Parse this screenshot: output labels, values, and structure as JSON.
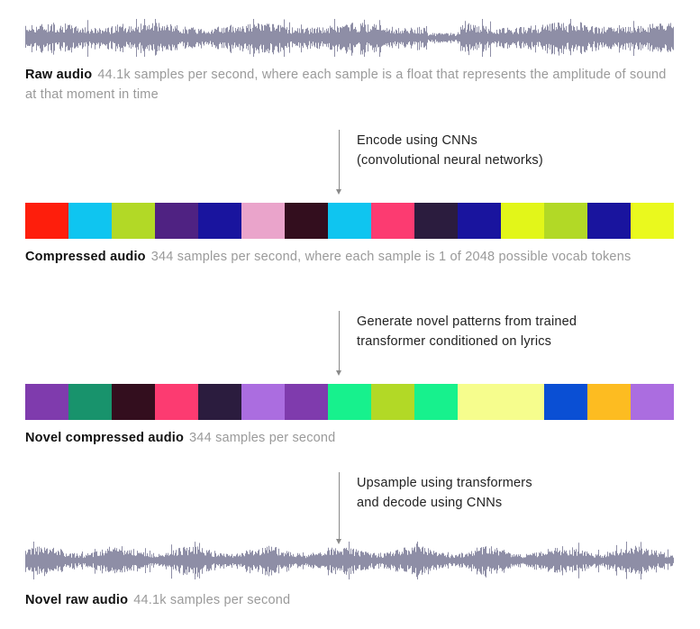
{
  "raw_audio": {
    "title": "Raw audio",
    "description": "44.1k samples per second, where each sample is a float that represents the amplitude of sound at that moment in time"
  },
  "step_encode": {
    "line1": "Encode using CNNs",
    "line2": "(convolutional neural networks)"
  },
  "compressed_audio": {
    "title": "Compressed audio",
    "description": "344 samples per second, where each sample is 1 of 2048 possible vocab tokens",
    "tokens": [
      {
        "color": "#fe1e0c",
        "span": 1
      },
      {
        "color": "#0fc5f0",
        "span": 1
      },
      {
        "color": "#b2d926",
        "span": 1
      },
      {
        "color": "#4f2282",
        "span": 1
      },
      {
        "color": "#19149e",
        "span": 1
      },
      {
        "color": "#eaa4cb",
        "span": 1
      },
      {
        "color": "#330e1e",
        "span": 1
      },
      {
        "color": "#0fc5f0",
        "span": 1
      },
      {
        "color": "#fc3b71",
        "span": 1
      },
      {
        "color": "#2b1c3e",
        "span": 1
      },
      {
        "color": "#19149e",
        "span": 1
      },
      {
        "color": "#e2f619",
        "span": 1
      },
      {
        "color": "#b2d926",
        "span": 1
      },
      {
        "color": "#19149e",
        "span": 1
      },
      {
        "color": "#eaf91e",
        "span": 1
      }
    ]
  },
  "step_generate": {
    "line1": "Generate novel patterns from trained",
    "line2": "transformer conditioned on lyrics"
  },
  "novel_compressed_audio": {
    "title": "Novel compressed audio",
    "description": "344 samples per second",
    "tokens": [
      {
        "color": "#7f3bad",
        "span": 1
      },
      {
        "color": "#18936c",
        "span": 1
      },
      {
        "color": "#330e1e",
        "span": 1
      },
      {
        "color": "#fc3b71",
        "span": 1
      },
      {
        "color": "#2b1c3e",
        "span": 1
      },
      {
        "color": "#ab6de0",
        "span": 1
      },
      {
        "color": "#7f3bad",
        "span": 1
      },
      {
        "color": "#17f18d",
        "span": 1
      },
      {
        "color": "#b2d926",
        "span": 1
      },
      {
        "color": "#17f18d",
        "span": 1
      },
      {
        "color": "#f6fd8d",
        "span": 2
      },
      {
        "color": "#0a4fd4",
        "span": 1
      },
      {
        "color": "#fdbc21",
        "span": 1
      },
      {
        "color": "#ab6de0",
        "span": 1
      }
    ]
  },
  "step_upsample": {
    "line1": "Upsample using transformers",
    "line2": "and decode using CNNs"
  },
  "novel_raw_audio": {
    "title": "Novel raw audio",
    "description": "44.1k samples per second"
  },
  "colors": {
    "waveform": "#8e8ea6"
  }
}
